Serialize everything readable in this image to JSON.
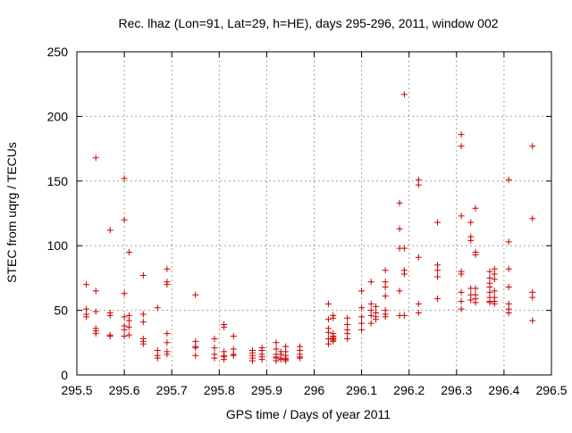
{
  "chart_data": {
    "type": "scatter",
    "title": "Rec. lhaz (Lon=91, Lat=29, h=HE), days 295-296, 2011, window 002",
    "xlabel": "GPS time / Days of year 2011",
    "ylabel": "STEC from uqrg / TECUs",
    "xlim": [
      295.5,
      296.5
    ],
    "ylim": [
      0,
      250
    ],
    "xticks": [
      295.5,
      295.6,
      295.7,
      295.8,
      295.9,
      296.0,
      296.1,
      296.2,
      296.3,
      296.4,
      296.5
    ],
    "xtick_labels": [
      "295.5",
      "295.6",
      "295.7",
      "295.8",
      "295.9",
      "296",
      "296.1",
      "296.2",
      "296.3",
      "296.4",
      "296.5"
    ],
    "yticks": [
      0,
      50,
      100,
      150,
      200,
      250
    ],
    "ytick_labels": [
      "0",
      "50",
      "100",
      "150",
      "200",
      "250"
    ],
    "grid": true,
    "marker": "+",
    "marker_color": "#cc0000",
    "series": [
      {
        "name": "STEC",
        "x": [
          295.52,
          295.52,
          295.52,
          295.52,
          295.54,
          295.54,
          295.54,
          295.54,
          295.54,
          295.54,
          295.57,
          295.57,
          295.57,
          295.57,
          295.57,
          295.6,
          295.6,
          295.6,
          295.6,
          295.6,
          295.6,
          295.6,
          295.61,
          295.61,
          295.61,
          295.61,
          295.61,
          295.64,
          295.64,
          295.64,
          295.64,
          295.64,
          295.64,
          295.67,
          295.67,
          295.67,
          295.67,
          295.69,
          295.69,
          295.69,
          295.69,
          295.69,
          295.69,
          295.69,
          295.75,
          295.75,
          295.75,
          295.75,
          295.75,
          295.79,
          295.79,
          295.79,
          295.79,
          295.81,
          295.81,
          295.81,
          295.81,
          295.81,
          295.81,
          295.83,
          295.83,
          295.83,
          295.83,
          295.87,
          295.87,
          295.87,
          295.87,
          295.87,
          295.89,
          295.89,
          295.89,
          295.89,
          295.89,
          295.92,
          295.92,
          295.92,
          295.92,
          295.92,
          295.92,
          295.93,
          295.93,
          295.93,
          295.93,
          295.94,
          295.94,
          295.94,
          295.94,
          295.94,
          295.94,
          295.97,
          295.97,
          295.97,
          295.97,
          295.97,
          296.03,
          296.03,
          296.03,
          296.03,
          296.03,
          296.03,
          296.04,
          296.04,
          296.04,
          296.04,
          296.04,
          296.04,
          296.04,
          296.04,
          296.07,
          296.07,
          296.07,
          296.07,
          296.07,
          296.1,
          296.1,
          296.1,
          296.1,
          296.1,
          296.12,
          296.12,
          296.12,
          296.12,
          296.12,
          296.13,
          296.13,
          296.13,
          296.13,
          296.15,
          296.15,
          296.15,
          296.15,
          296.15,
          296.15,
          296.15,
          296.18,
          296.18,
          296.18,
          296.18,
          296.18,
          296.19,
          296.19,
          296.19,
          296.19,
          296.19,
          296.22,
          296.22,
          296.22,
          296.22,
          296.22,
          296.26,
          296.26,
          296.26,
          296.26,
          296.26,
          296.31,
          296.31,
          296.31,
          296.31,
          296.31,
          296.31,
          296.31,
          296.31,
          296.33,
          296.33,
          296.33,
          296.33,
          296.33,
          296.33,
          296.34,
          296.34,
          296.34,
          296.34,
          296.34,
          296.34,
          296.34,
          296.37,
          296.37,
          296.37,
          296.37,
          296.37,
          296.37,
          296.37,
          296.37,
          296.38,
          296.38,
          296.38,
          296.38,
          296.38,
          296.38,
          296.38,
          296.41,
          296.41,
          296.41,
          296.41,
          296.41,
          296.41,
          296.41,
          296.46,
          296.46,
          296.46,
          296.46,
          296.46
        ],
        "y": [
          70,
          51,
          47,
          45,
          168,
          65,
          49,
          36,
          34,
          32,
          112,
          48,
          46,
          31,
          30,
          152,
          120,
          63,
          45,
          38,
          35,
          30,
          95,
          46,
          42,
          37,
          31,
          77,
          47,
          41,
          28,
          26,
          24,
          52,
          19,
          15,
          13,
          82,
          72,
          70,
          32,
          25,
          18,
          16,
          62,
          26,
          22,
          21,
          15,
          28,
          21,
          16,
          13,
          39,
          37,
          18,
          15,
          14,
          12,
          30,
          20,
          16,
          15,
          19,
          17,
          15,
          13,
          11,
          21,
          19,
          16,
          14,
          12,
          25,
          20,
          16,
          14,
          13,
          11,
          18,
          16,
          13,
          12,
          22,
          18,
          15,
          13,
          12,
          11,
          22,
          19,
          16,
          14,
          13,
          55,
          43,
          36,
          33,
          28,
          24,
          46,
          44,
          32,
          30,
          29,
          28,
          27,
          26,
          44,
          39,
          35,
          32,
          28,
          65,
          52,
          45,
          40,
          35,
          72,
          55,
          50,
          46,
          40,
          53,
          48,
          43,
          45,
          81,
          72,
          68,
          61,
          50,
          47,
          45,
          133,
          113,
          98,
          65,
          46,
          217,
          98,
          81,
          78,
          46,
          151,
          147,
          91,
          55,
          48,
          118,
          85,
          81,
          76,
          59,
          186,
          177,
          123,
          80,
          78,
          64,
          57,
          51,
          118,
          107,
          104,
          67,
          62,
          58,
          129,
          95,
          93,
          67,
          62,
          59,
          56,
          80,
          75,
          71,
          68,
          64,
          60,
          57,
          56,
          82,
          78,
          74,
          65,
          60,
          57,
          55,
          151,
          103,
          82,
          68,
          55,
          51,
          48,
          177,
          121,
          64,
          60,
          42
        ]
      }
    ]
  }
}
